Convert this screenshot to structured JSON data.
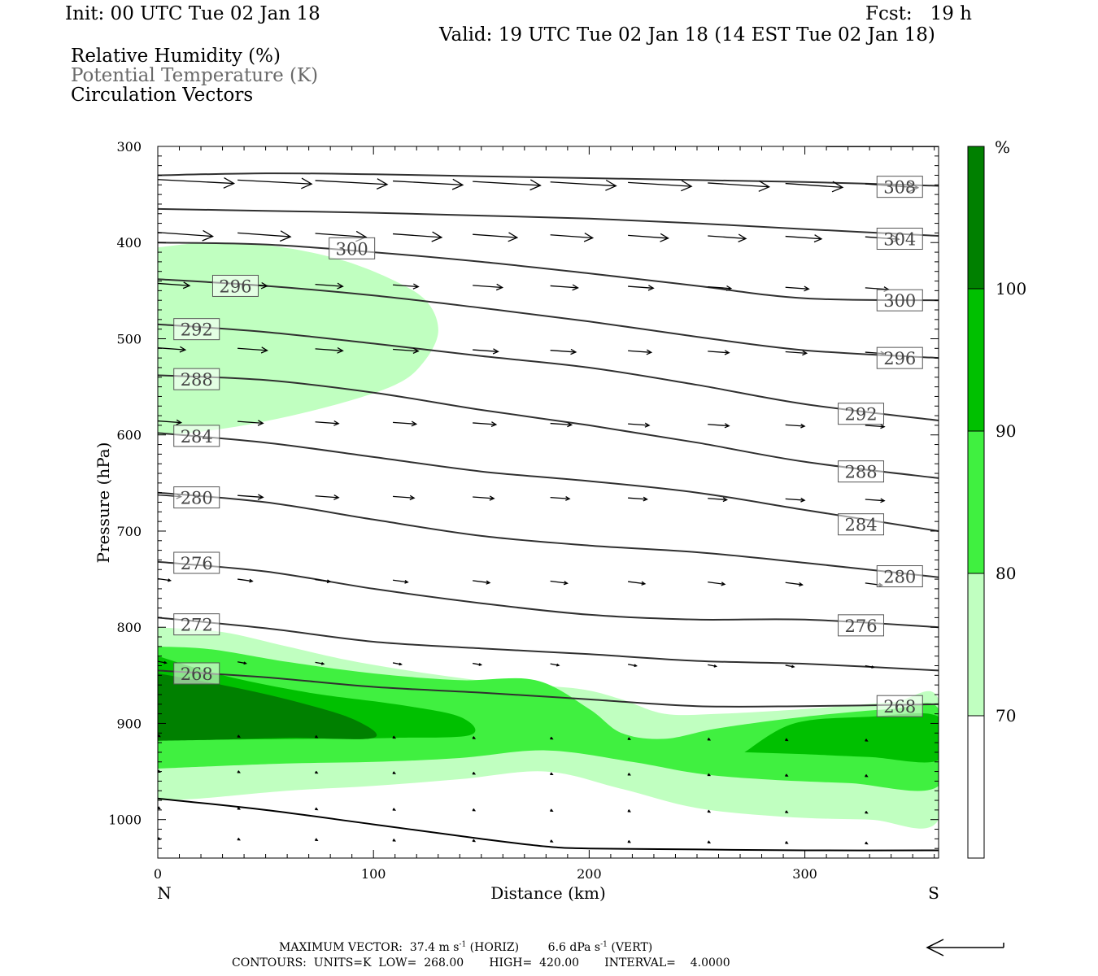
{
  "header": {
    "init": "Init: 00 UTC Tue 02 Jan 18",
    "fcst": "Fcst:   19 h",
    "valid": "Valid: 19 UTC Tue 02 Jan 18 (14 EST Tue 02 Jan 18)"
  },
  "legend": {
    "line1": "Relative Humidity (%)",
    "line2": "Potential Temperature (K)",
    "line3": "Circulation Vectors"
  },
  "chart_data": {
    "type": "heatmap",
    "title": "Relative Humidity (%) / Potential Temperature (K) / Circulation Vectors",
    "xlabel": "Distance (km)",
    "ylabel": "Pressure (hPa)",
    "xlim": [
      0,
      362
    ],
    "ylim": [
      1040,
      300
    ],
    "x_ticks": [
      0,
      100,
      200,
      300
    ],
    "y_ticks": [
      300,
      400,
      500,
      600,
      700,
      800,
      900,
      1000
    ],
    "x_end_labels": {
      "left": "N",
      "right": "S"
    },
    "colorbar": {
      "unit": "%",
      "levels": [
        70,
        80,
        90,
        100
      ],
      "colors": [
        "#ffffff",
        "#c0ffc0",
        "#40f040",
        "#00c000",
        "#008000"
      ]
    },
    "rh_regions": [
      {
        "level": "70-80",
        "color": "#c0ffc0",
        "points": [
          [
            0,
            405
          ],
          [
            25,
            400
          ],
          [
            55,
            404
          ],
          [
            85,
            418
          ],
          [
            110,
            440
          ],
          [
            125,
            462
          ],
          [
            130,
            493
          ],
          [
            123,
            525
          ],
          [
            110,
            548
          ],
          [
            80,
            570
          ],
          [
            45,
            588
          ],
          [
            15,
            598
          ],
          [
            0,
            600
          ]
        ]
      },
      {
        "level": "70-80",
        "color": "#c0ffc0",
        "points": [
          [
            0,
            800
          ],
          [
            30,
            805
          ],
          [
            60,
            820
          ],
          [
            90,
            835
          ],
          [
            125,
            848
          ],
          [
            160,
            858
          ],
          [
            195,
            864
          ],
          [
            215,
            875
          ],
          [
            235,
            890
          ],
          [
            260,
            890
          ],
          [
            300,
            885
          ],
          [
            340,
            878
          ],
          [
            362,
            875
          ],
          [
            362,
            1000
          ],
          [
            330,
            1000
          ],
          [
            290,
            997
          ],
          [
            250,
            988
          ],
          [
            215,
            968
          ],
          [
            180,
            950
          ],
          [
            140,
            958
          ],
          [
            100,
            965
          ],
          [
            60,
            970
          ],
          [
            20,
            978
          ],
          [
            0,
            980
          ]
        ]
      },
      {
        "level": "80-90",
        "color": "#40f040",
        "points": [
          [
            0,
            820
          ],
          [
            25,
            823
          ],
          [
            60,
            836
          ],
          [
            100,
            848
          ],
          [
            140,
            855
          ],
          [
            175,
            855
          ],
          [
            200,
            885
          ],
          [
            215,
            910
          ],
          [
            235,
            916
          ],
          [
            260,
            905
          ],
          [
            300,
            893
          ],
          [
            340,
            885
          ],
          [
            362,
            885
          ],
          [
            362,
            965
          ],
          [
            320,
            962
          ],
          [
            280,
            958
          ],
          [
            250,
            952
          ],
          [
            220,
            940
          ],
          [
            180,
            928
          ],
          [
            140,
            936
          ],
          [
            100,
            940
          ],
          [
            55,
            942
          ],
          [
            0,
            947
          ]
        ]
      },
      {
        "level": "90-100",
        "color": "#00c000",
        "points": [
          [
            0,
            830
          ],
          [
            30,
            850
          ],
          [
            70,
            868
          ],
          [
            110,
            880
          ],
          [
            140,
            893
          ],
          [
            145,
            912
          ],
          [
            110,
            915
          ],
          [
            70,
            916
          ],
          [
            25,
            917
          ],
          [
            0,
            918
          ]
        ]
      },
      {
        "level": "90-100",
        "color": "#00c000",
        "points": [
          [
            272,
            930
          ],
          [
            295,
            900
          ],
          [
            330,
            893
          ],
          [
            362,
            893
          ],
          [
            362,
            938
          ],
          [
            330,
            935
          ],
          [
            300,
            932
          ]
        ]
      },
      {
        "level": "100",
        "color": "#008000",
        "points": [
          [
            0,
            848
          ],
          [
            30,
            860
          ],
          [
            60,
            875
          ],
          [
            90,
            895
          ],
          [
            100,
            915
          ],
          [
            60,
            915
          ],
          [
            25,
            917
          ],
          [
            0,
            918
          ]
        ]
      }
    ],
    "theta_contours": [
      {
        "value": 308,
        "points": [
          [
            0,
            330
          ],
          [
            50,
            328
          ],
          [
            100,
            329
          ],
          [
            150,
            331
          ],
          [
            200,
            333
          ],
          [
            250,
            335
          ],
          [
            300,
            337
          ],
          [
            362,
            341
          ]
        ]
      },
      {
        "value": 304,
        "points": [
          [
            0,
            365
          ],
          [
            50,
            367
          ],
          [
            100,
            369
          ],
          [
            150,
            372
          ],
          [
            200,
            375
          ],
          [
            250,
            380
          ],
          [
            300,
            386
          ],
          [
            362,
            393
          ]
        ]
      },
      {
        "value": 300,
        "points": [
          [
            0,
            400
          ],
          [
            50,
            402
          ],
          [
            100,
            410
          ],
          [
            150,
            420
          ],
          [
            200,
            432
          ],
          [
            250,
            445
          ],
          [
            300,
            458
          ],
          [
            362,
            460
          ]
        ]
      },
      {
        "value": 296,
        "points": [
          [
            0,
            438
          ],
          [
            50,
            445
          ],
          [
            100,
            455
          ],
          [
            150,
            468
          ],
          [
            200,
            482
          ],
          [
            250,
            498
          ],
          [
            300,
            512
          ],
          [
            362,
            520
          ]
        ]
      },
      {
        "value": 292,
        "points": [
          [
            0,
            485
          ],
          [
            50,
            493
          ],
          [
            100,
            505
          ],
          [
            150,
            518
          ],
          [
            200,
            530
          ],
          [
            250,
            548
          ],
          [
            300,
            568
          ],
          [
            362,
            585
          ]
        ]
      },
      {
        "value": 288,
        "points": [
          [
            0,
            538
          ],
          [
            50,
            543
          ],
          [
            100,
            556
          ],
          [
            150,
            574
          ],
          [
            200,
            590
          ],
          [
            250,
            608
          ],
          [
            300,
            628
          ],
          [
            362,
            645
          ]
        ]
      },
      {
        "value": 284,
        "points": [
          [
            0,
            598
          ],
          [
            50,
            608
          ],
          [
            100,
            623
          ],
          [
            150,
            638
          ],
          [
            200,
            648
          ],
          [
            250,
            660
          ],
          [
            300,
            678
          ],
          [
            362,
            700
          ]
        ]
      },
      {
        "value": 280,
        "points": [
          [
            0,
            660
          ],
          [
            50,
            670
          ],
          [
            100,
            688
          ],
          [
            150,
            705
          ],
          [
            200,
            715
          ],
          [
            250,
            722
          ],
          [
            300,
            733
          ],
          [
            362,
            748
          ]
        ]
      },
      {
        "value": 276,
        "points": [
          [
            0,
            732
          ],
          [
            50,
            742
          ],
          [
            100,
            760
          ],
          [
            150,
            775
          ],
          [
            200,
            787
          ],
          [
            250,
            792
          ],
          [
            300,
            792
          ],
          [
            362,
            800
          ]
        ]
      },
      {
        "value": 272,
        "points": [
          [
            0,
            790
          ],
          [
            50,
            801
          ],
          [
            100,
            815
          ],
          [
            150,
            822
          ],
          [
            200,
            828
          ],
          [
            250,
            835
          ],
          [
            300,
            838
          ],
          [
            362,
            845
          ]
        ]
      },
      {
        "value": 268,
        "points": [
          [
            0,
            845
          ],
          [
            50,
            852
          ],
          [
            100,
            862
          ],
          [
            150,
            868
          ],
          [
            200,
            875
          ],
          [
            250,
            882
          ],
          [
            300,
            882
          ],
          [
            362,
            880
          ]
        ]
      }
    ],
    "surface_line": [
      [
        0,
        978
      ],
      [
        50,
        990
      ],
      [
        100,
        1005
      ],
      [
        150,
        1020
      ],
      [
        180,
        1028
      ],
      [
        200,
        1030
      ],
      [
        250,
        1031
      ],
      [
        300,
        1032
      ],
      [
        362,
        1032
      ]
    ],
    "top_line": [
      [
        310,
        300
      ],
      [
        362,
        300
      ]
    ],
    "contour_labels": [
      {
        "text": "308",
        "x": 344,
        "y": 342
      },
      {
        "text": "304",
        "x": 344,
        "y": 396
      },
      {
        "text": "300",
        "x": 90,
        "y": 406
      },
      {
        "text": "300",
        "x": 344,
        "y": 460
      },
      {
        "text": "296",
        "x": 36,
        "y": 445
      },
      {
        "text": "296",
        "x": 344,
        "y": 520
      },
      {
        "text": "292",
        "x": 18,
        "y": 490
      },
      {
        "text": "292",
        "x": 326,
        "y": 578
      },
      {
        "text": "288",
        "x": 18,
        "y": 542
      },
      {
        "text": "288",
        "x": 326,
        "y": 638
      },
      {
        "text": "284",
        "x": 18,
        "y": 601
      },
      {
        "text": "284",
        "x": 326,
        "y": 693
      },
      {
        "text": "280",
        "x": 18,
        "y": 665
      },
      {
        "text": "280",
        "x": 344,
        "y": 747
      },
      {
        "text": "276",
        "x": 18,
        "y": 733
      },
      {
        "text": "276",
        "x": 326,
        "y": 798
      },
      {
        "text": "272",
        "x": 18,
        "y": 797
      },
      {
        "text": "268",
        "x": 18,
        "y": 848
      },
      {
        "text": "268",
        "x": 344,
        "y": 882
      }
    ],
    "vector_columns_km": [
      0,
      37,
      73,
      109,
      146,
      182,
      218,
      255,
      291,
      328
    ],
    "vector_rows": [
      {
        "p": 337,
        "u": [
          36,
          35,
          34,
          33,
          32,
          31,
          30,
          29,
          27,
          25
        ],
        "w": [
          0,
          0,
          0,
          0,
          0,
          0,
          0,
          0,
          0,
          0
        ]
      },
      {
        "p": 392,
        "u": [
          26,
          25,
          24,
          23,
          21,
          20,
          19,
          18,
          17,
          16
        ],
        "w": [
          0,
          0,
          0,
          0,
          0,
          0,
          0,
          0,
          0,
          0
        ]
      },
      {
        "p": 445,
        "u": [
          15,
          14,
          13,
          12,
          14,
          13,
          12,
          11,
          11,
          11
        ],
        "w": [
          0,
          0,
          0,
          0,
          0,
          0,
          0,
          0,
          0,
          0
        ]
      },
      {
        "p": 512,
        "u": [
          13,
          14,
          13,
          12,
          12,
          12,
          11,
          10,
          10,
          9
        ],
        "w": [
          0,
          0,
          0,
          0,
          0,
          0,
          0,
          0,
          0,
          0
        ]
      },
      {
        "p": 588,
        "u": [
          11,
          12,
          11,
          11,
          11,
          10,
          10,
          10,
          9,
          9
        ],
        "w": [
          0,
          0,
          0,
          0,
          0,
          0,
          0,
          0,
          0,
          0
        ]
      },
      {
        "p": 665,
        "u": [
          11,
          12,
          11,
          10,
          10,
          9,
          9,
          9,
          9,
          9
        ],
        "w": [
          0,
          0,
          0,
          0,
          0,
          0,
          0,
          0,
          0,
          0
        ]
      },
      {
        "p": 752,
        "u": [
          6,
          7,
          7,
          7,
          8,
          8,
          8,
          8,
          8,
          8
        ],
        "w": [
          0,
          0,
          0,
          0,
          0,
          0,
          0,
          0,
          0,
          0
        ]
      },
      {
        "p": 838,
        "u": [
          4,
          4,
          4,
          4,
          4,
          4,
          4,
          4,
          4,
          4
        ],
        "w": [
          0,
          0,
          0,
          0,
          0,
          0,
          0,
          0,
          0,
          0
        ]
      },
      {
        "p": 915,
        "u": [
          1,
          1,
          1,
          1,
          1,
          1,
          1,
          1,
          1,
          1
        ],
        "w": [
          0,
          0,
          0,
          0,
          0,
          0,
          0,
          0,
          0,
          0
        ]
      },
      {
        "p": 952,
        "u": [
          1,
          1,
          1,
          1,
          1,
          1,
          1,
          1,
          1,
          1
        ],
        "w": [
          0,
          0,
          0,
          0,
          0,
          0,
          0,
          0,
          0,
          0
        ]
      },
      {
        "p": 990,
        "u": [
          1,
          1,
          1,
          1,
          1,
          1,
          1,
          1,
          1,
          1
        ],
        "w": [
          0,
          0,
          0,
          0,
          0,
          0,
          0,
          0,
          0,
          0
        ]
      },
      {
        "p": 1022,
        "u": [
          1,
          1,
          1,
          1,
          1,
          1,
          1,
          1,
          1,
          1
        ],
        "w": [
          0,
          0,
          0,
          0,
          0,
          0,
          0,
          0,
          0,
          0
        ]
      }
    ]
  },
  "footer": {
    "max_vector_prefix": "MAXIMUM VECTOR:  37.4 m s",
    "max_vector_mid": " (HORIZ)        6.6 dPa s",
    "max_vector_suffix": " (VERT)",
    "exponent": "-1",
    "contours": "CONTOURS:  UNITS=K  LOW=  268.00       HIGH=  420.00       INTERVAL=    4.0000"
  }
}
